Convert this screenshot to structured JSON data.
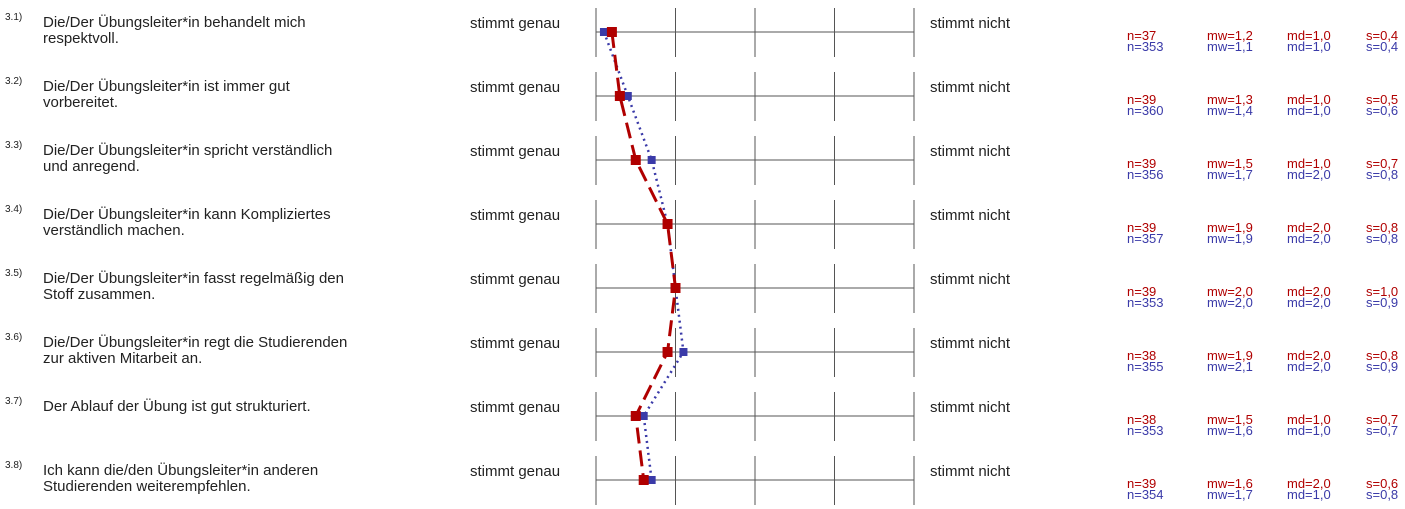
{
  "scale": {
    "left_label": "stimmt genau",
    "right_label": "stimmt nicht",
    "min": 1,
    "max": 5
  },
  "colors": {
    "series_a": "#b00000",
    "series_b": "#3a3aa8"
  },
  "chart_data": {
    "type": "line",
    "orientation": "horizontal-profile",
    "categories": [
      "Die/Der Übungsleiter*in behandelt mich respektvoll.",
      "Die/Der Übungsleiter*in ist immer gut vorbereitet.",
      "Die/Der Übungsleiter*in spricht verständlich und anregend.",
      "Die/Der Übungsleiter*in kann Kompliziertes verständlich machen.",
      "Die/Der Übungsleiter*in fasst regelmäßig den Stoff zusammen.",
      "Die/Der Übungsleiter*in regt die Studierenden zur aktiven Mitarbeit an.",
      "Der Ablauf der Übung ist gut strukturiert.",
      "Ich kann die/den Übungsleiter*in anderen Studierenden weiterempfehlen."
    ],
    "xlim": [
      1,
      5
    ],
    "series": [
      {
        "values": [
          1.2,
          1.3,
          1.5,
          1.9,
          2.0,
          1.9,
          1.5,
          1.6
        ]
      },
      {
        "values": [
          1.1,
          1.4,
          1.7,
          1.9,
          2.0,
          2.1,
          1.6,
          1.7
        ]
      }
    ]
  },
  "items": [
    {
      "num": "3.1)",
      "lines": [
        "Die/Der Übungsleiter*in behandelt mich",
        "respektvoll."
      ],
      "stats_a": {
        "n": "n=37",
        "mw": "mw=1,2",
        "md": "md=1,0",
        "s": "s=0,4"
      },
      "stats_b": {
        "n": "n=353",
        "mw": "mw=1,1",
        "md": "md=1,0",
        "s": "s=0,4"
      }
    },
    {
      "num": "3.2)",
      "lines": [
        "Die/Der Übungsleiter*in ist immer gut",
        "vorbereitet."
      ],
      "stats_a": {
        "n": "n=39",
        "mw": "mw=1,3",
        "md": "md=1,0",
        "s": "s=0,5"
      },
      "stats_b": {
        "n": "n=360",
        "mw": "mw=1,4",
        "md": "md=1,0",
        "s": "s=0,6"
      }
    },
    {
      "num": "3.3)",
      "lines": [
        "Die/Der Übungsleiter*in spricht verständlich",
        "und anregend."
      ],
      "stats_a": {
        "n": "n=39",
        "mw": "mw=1,5",
        "md": "md=1,0",
        "s": "s=0,7"
      },
      "stats_b": {
        "n": "n=356",
        "mw": "mw=1,7",
        "md": "md=2,0",
        "s": "s=0,8"
      }
    },
    {
      "num": "3.4)",
      "lines": [
        "Die/Der Übungsleiter*in kann Kompliziertes",
        "verständlich machen."
      ],
      "stats_a": {
        "n": "n=39",
        "mw": "mw=1,9",
        "md": "md=2,0",
        "s": "s=0,8"
      },
      "stats_b": {
        "n": "n=357",
        "mw": "mw=1,9",
        "md": "md=2,0",
        "s": "s=0,8"
      }
    },
    {
      "num": "3.5)",
      "lines": [
        "Die/Der Übungsleiter*in fasst regelmäßig den",
        "Stoff zusammen."
      ],
      "stats_a": {
        "n": "n=39",
        "mw": "mw=2,0",
        "md": "md=2,0",
        "s": "s=1,0"
      },
      "stats_b": {
        "n": "n=353",
        "mw": "mw=2,0",
        "md": "md=2,0",
        "s": "s=0,9"
      }
    },
    {
      "num": "3.6)",
      "lines": [
        "Die/Der Übungsleiter*in regt die Studierenden",
        "zur aktiven Mitarbeit an."
      ],
      "stats_a": {
        "n": "n=38",
        "mw": "mw=1,9",
        "md": "md=2,0",
        "s": "s=0,8"
      },
      "stats_b": {
        "n": "n=355",
        "mw": "mw=2,1",
        "md": "md=2,0",
        "s": "s=0,9"
      }
    },
    {
      "num": "3.7)",
      "lines": [
        "Der Ablauf der Übung ist gut strukturiert.",
        ""
      ],
      "stats_a": {
        "n": "n=38",
        "mw": "mw=1,5",
        "md": "md=1,0",
        "s": "s=0,7"
      },
      "stats_b": {
        "n": "n=353",
        "mw": "mw=1,6",
        "md": "md=1,0",
        "s": "s=0,7"
      }
    },
    {
      "num": "3.8)",
      "lines": [
        "Ich kann die/den Übungsleiter*in anderen",
        "Studierenden weiterempfehlen."
      ],
      "stats_a": {
        "n": "n=39",
        "mw": "mw=1,6",
        "md": "md=2,0",
        "s": "s=0,6"
      },
      "stats_b": {
        "n": "n=354",
        "mw": "mw=1,7",
        "md": "md=1,0",
        "s": "s=0,8"
      }
    }
  ]
}
